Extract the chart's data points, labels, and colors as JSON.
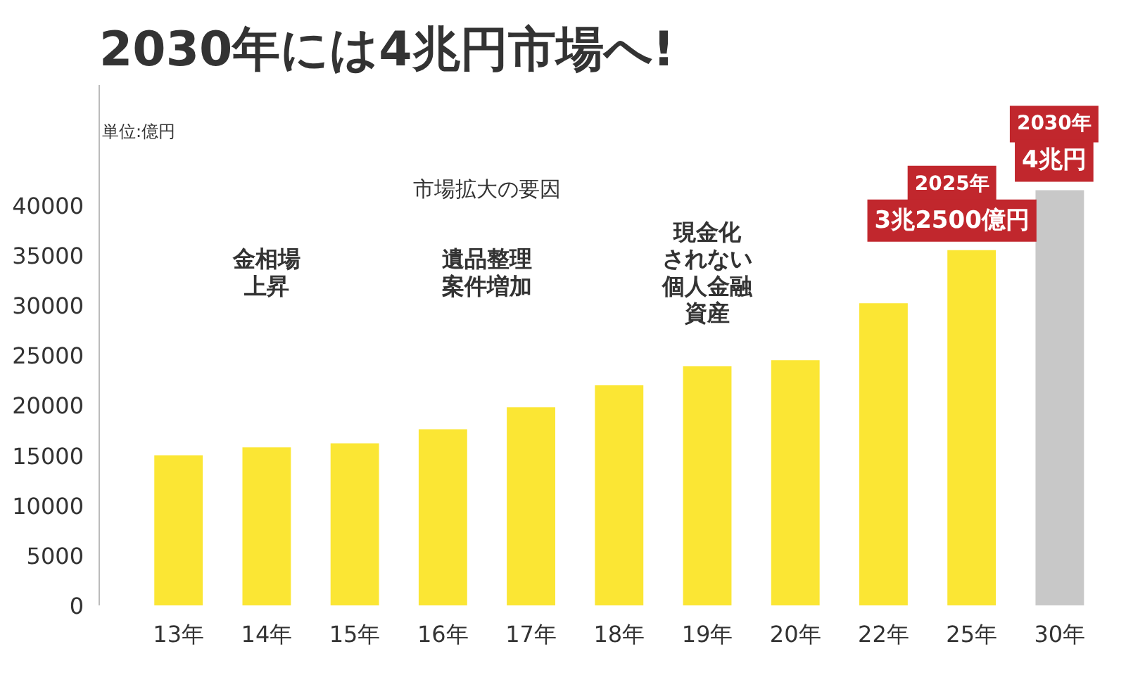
{
  "chart_data": {
    "type": "bar",
    "title": "2030年には4兆円市場へ!",
    "ylabel": "単位:億円",
    "categories": [
      "13年",
      "14年",
      "15年",
      "16年",
      "17年",
      "18年",
      "19年",
      "20年",
      "22年",
      "25年",
      "30年"
    ],
    "values": [
      15000,
      15800,
      16200,
      17600,
      19800,
      22000,
      23900,
      24500,
      30200,
      35500,
      41500
    ],
    "colors": [
      "#fbe634",
      "#fbe634",
      "#fbe634",
      "#fbe634",
      "#fbe634",
      "#fbe634",
      "#fbe634",
      "#fbe634",
      "#fbe634",
      "#fbe634",
      "#c8c8c8"
    ],
    "ylim": [
      0,
      52000
    ],
    "yticks": [
      0,
      5000,
      10000,
      15000,
      20000,
      25000,
      30000,
      35000,
      40000
    ],
    "grid": false,
    "annotations": [
      "市場拡大の要因",
      [
        "金相場",
        "上昇"
      ],
      [
        "遺品整理",
        "案件増加"
      ],
      [
        "現金化",
        "されない",
        "個人金融",
        "資産"
      ],
      {
        "text": "2025年",
        "x": "25年",
        "y": 35500
      },
      {
        "text": "3兆2500億円",
        "x": "25年",
        "y": 35500
      },
      {
        "text": "2030年",
        "x": "30年",
        "y": 41500
      },
      {
        "text": "4兆円",
        "x": "30年",
        "y": 41500
      }
    ]
  }
}
